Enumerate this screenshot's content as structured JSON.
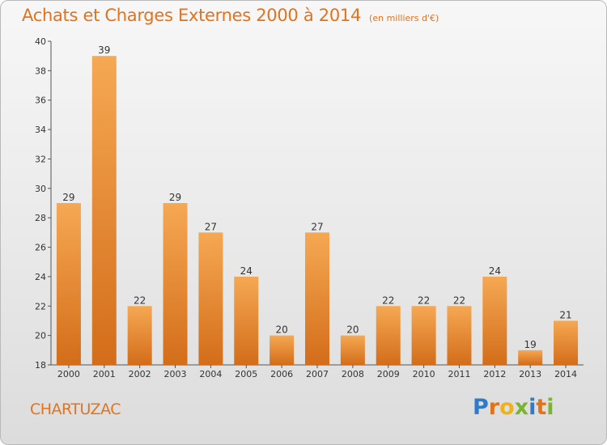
{
  "title": "Achats et Charges Externes 2000 à 2014",
  "unit_note": "(en milliers d'€)",
  "commune": "CHARTUZAC",
  "logo": {
    "letters": [
      "P",
      "r",
      "o",
      "x",
      "i",
      "t",
      "i"
    ],
    "colors": [
      "#2f7ac9",
      "#e2731d",
      "#f0b21b",
      "#79b52d",
      "#2f7ac9",
      "#e2731d",
      "#79b52d"
    ]
  },
  "colors": {
    "accent": "#e2731d",
    "bar_light": "#f6a853",
    "bar_dark": "#d36d1a"
  },
  "chart_data": {
    "type": "bar",
    "categories": [
      "2000",
      "2001",
      "2002",
      "2003",
      "2004",
      "2005",
      "2006",
      "2007",
      "2008",
      "2009",
      "2010",
      "2011",
      "2012",
      "2013",
      "2014"
    ],
    "values": [
      29,
      39,
      22,
      29,
      27,
      24,
      20,
      27,
      20,
      22,
      22,
      22,
      24,
      19,
      21
    ],
    "ylim": [
      18,
      40
    ],
    "yticks": [
      18,
      20,
      22,
      24,
      26,
      28,
      30,
      32,
      34,
      36,
      38,
      40
    ],
    "grid": false,
    "legend": "none"
  }
}
